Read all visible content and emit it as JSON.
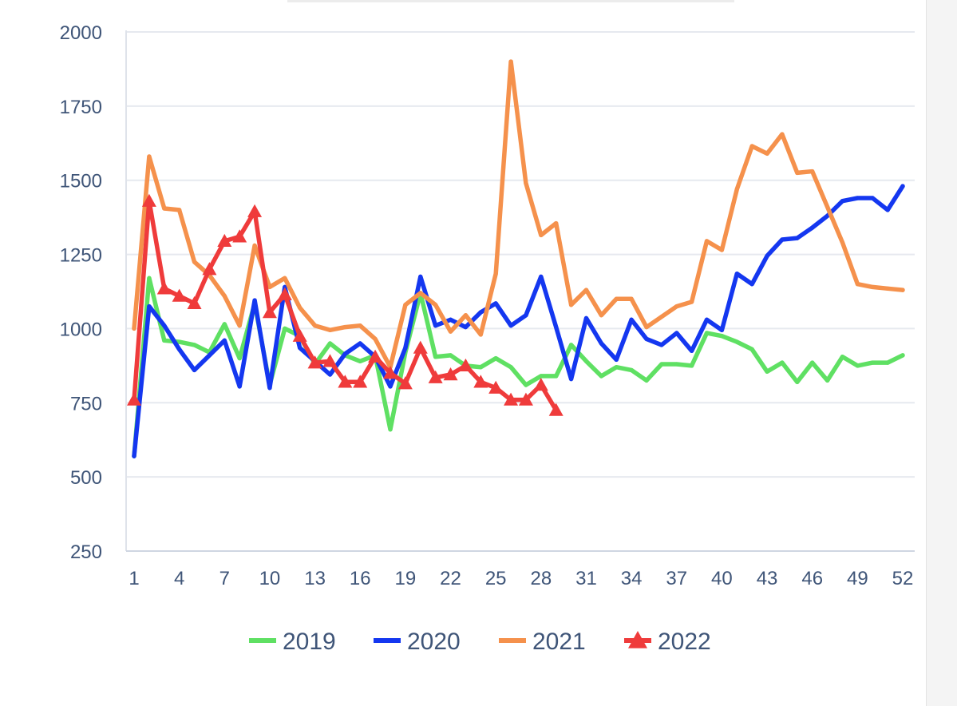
{
  "chart_data": {
    "type": "line",
    "title": "",
    "xlabel": "",
    "ylabel": "",
    "xlim": [
      1,
      52
    ],
    "ylim": [
      250,
      2000
    ],
    "yticks": [
      2000,
      1750,
      1500,
      1250,
      1000,
      750,
      500,
      250
    ],
    "xticks": [
      1,
      4,
      7,
      10,
      13,
      16,
      19,
      22,
      25,
      28,
      31,
      34,
      37,
      40,
      43,
      46,
      49,
      52
    ],
    "grid": "horizontal",
    "legend_position": "bottom",
    "series": [
      {
        "name": "2019",
        "color": "#5fe063",
        "marker": "none",
        "values": [
          570,
          1170,
          960,
          955,
          945,
          920,
          1015,
          900,
          1085,
          810,
          1000,
          975,
          880,
          950,
          910,
          890,
          910,
          660,
          920,
          1120,
          905,
          910,
          875,
          870,
          900,
          870,
          810,
          840,
          840,
          945,
          890,
          840,
          870,
          860,
          825,
          880,
          880,
          875,
          985,
          975,
          955,
          930,
          855,
          885,
          820,
          885,
          825,
          905,
          875,
          885,
          885,
          910
        ]
      },
      {
        "name": "2020",
        "color": "#1437f0",
        "marker": "none",
        "values": [
          570,
          1075,
          1010,
          930,
          860,
          910,
          960,
          805,
          1095,
          800,
          1140,
          935,
          890,
          845,
          915,
          950,
          905,
          805,
          935,
          1175,
          1010,
          1030,
          1005,
          1055,
          1085,
          1010,
          1045,
          1175,
          1005,
          830,
          1035,
          950,
          895,
          1030,
          965,
          945,
          985,
          925,
          1030,
          995,
          1185,
          1150,
          1245,
          1300,
          1305,
          1340,
          1380,
          1430,
          1440,
          1440,
          1400,
          1480
        ]
      },
      {
        "name": "2021",
        "color": "#f5914c",
        "marker": "none",
        "values": [
          1000,
          1580,
          1405,
          1400,
          1225,
          1180,
          1110,
          1010,
          1280,
          1140,
          1170,
          1070,
          1010,
          995,
          1005,
          1010,
          965,
          870,
          1080,
          1120,
          1080,
          990,
          1045,
          980,
          1185,
          1900,
          1490,
          1315,
          1355,
          1080,
          1130,
          1045,
          1100,
          1100,
          1005,
          1040,
          1075,
          1090,
          1295,
          1265,
          1470,
          1615,
          1590,
          1655,
          1525,
          1530,
          1410,
          1290,
          1150,
          1140,
          1135,
          1130
        ]
      },
      {
        "name": "2022",
        "color": "#ef3b3b",
        "marker": "triangle",
        "values": [
          760,
          1430,
          1135,
          1110,
          1085,
          1200,
          1295,
          1310,
          1395,
          1055,
          1115,
          975,
          885,
          890,
          820,
          820,
          905,
          850,
          815,
          935,
          835,
          845,
          875,
          820,
          800,
          760,
          760,
          810,
          725
        ]
      }
    ]
  }
}
